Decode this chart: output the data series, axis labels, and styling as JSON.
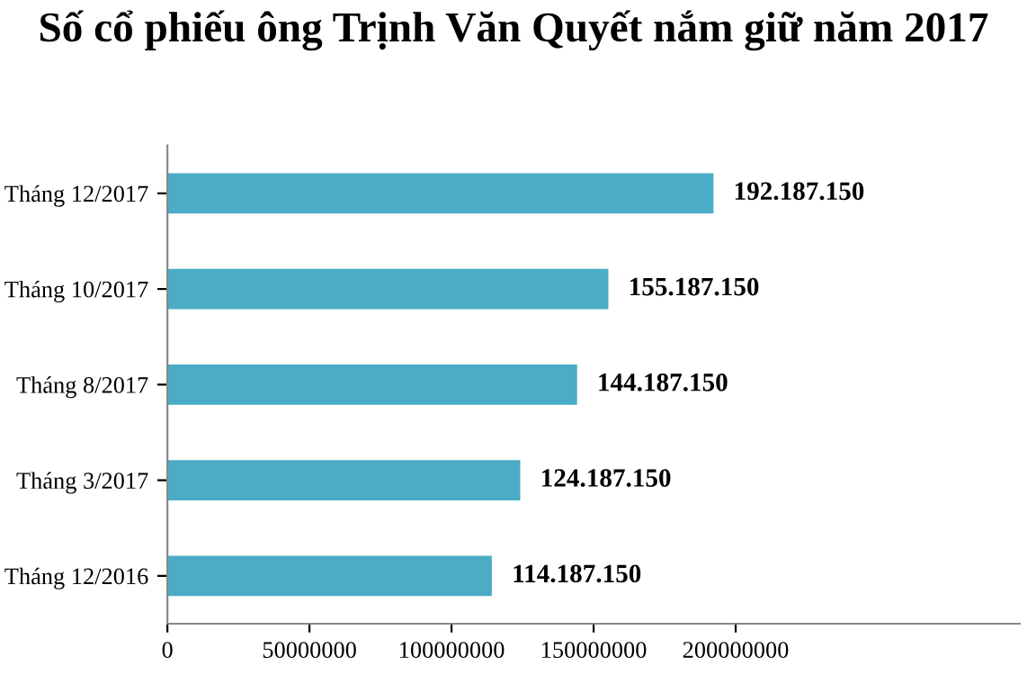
{
  "chart_data": {
    "type": "bar",
    "orientation": "horizontal",
    "title": "Số cổ phiếu ông Trịnh Văn Quyết nắm giữ năm 2017",
    "categories": [
      "Tháng 12/2017",
      "Tháng 10/2017",
      "Tháng 8/2017",
      "Tháng 3/2017",
      "Tháng 12/2016"
    ],
    "values": [
      192187150,
      155187150,
      144187150,
      124187150,
      114187150
    ],
    "value_labels": [
      "192.187.150",
      "155.187.150",
      "144.187.150",
      "124.187.150",
      "114.187.150"
    ],
    "color": "#4bacc6",
    "xlim": [
      0,
      300000000
    ],
    "xticks": [
      0,
      50000000,
      100000000,
      150000000,
      200000000
    ],
    "grid": false
  }
}
